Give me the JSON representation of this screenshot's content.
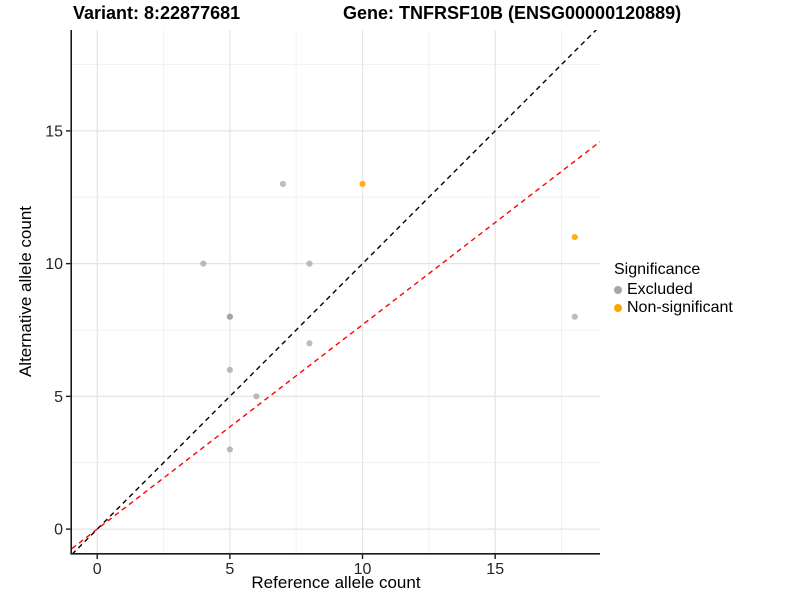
{
  "titles": {
    "variant": "Variant: 8:22877681",
    "gene": "Gene: TNFRSF10B (ENSG00000120889)"
  },
  "chart_data": {
    "type": "scatter",
    "xlabel": "Reference allele count",
    "ylabel": "Alternative allele count",
    "xlim": [
      -0.95,
      18.95
    ],
    "ylim": [
      -0.9,
      18.8
    ],
    "x_ticks": [
      0,
      5,
      10,
      15
    ],
    "y_ticks": [
      0,
      5,
      10,
      15
    ],
    "x_minor_ticks": [
      2.5,
      7.5,
      12.5,
      17.5
    ],
    "y_minor_ticks": [
      2.5,
      7.5,
      12.5,
      17.5
    ],
    "grid": true,
    "series": [
      {
        "name": "Excluded",
        "color": "#999999",
        "opacity": 0.65,
        "points": [
          [
            4,
            10
          ],
          [
            5,
            8
          ],
          [
            5,
            8
          ],
          [
            5,
            6
          ],
          [
            5,
            3
          ],
          [
            6,
            5
          ],
          [
            7,
            13
          ],
          [
            8,
            10
          ],
          [
            8,
            7
          ],
          [
            18,
            8
          ]
        ]
      },
      {
        "name": "Non-significant",
        "color": "#FFA500",
        "opacity": 0.9,
        "points": [
          [
            10,
            13
          ],
          [
            18,
            11
          ]
        ]
      }
    ],
    "lines": [
      {
        "name": "identity-line",
        "slope": 1,
        "intercept": 0,
        "color": "#000000",
        "dashed": true
      },
      {
        "name": "ratio-line",
        "slope": 0.77,
        "intercept": 0,
        "color": "#FF0000",
        "dashed": true
      }
    ],
    "legend": {
      "title": "Significance",
      "position": "right",
      "items": [
        {
          "label": "Excluded",
          "color": "#A6A6A6"
        },
        {
          "label": "Non-significant",
          "color": "#FFA500"
        }
      ]
    },
    "colors": {
      "grid_major": "#E4E4E4",
      "grid_minor": "#F0F0F0",
      "axis_line": "#1A1A1A",
      "tick_label": "#262626"
    }
  }
}
